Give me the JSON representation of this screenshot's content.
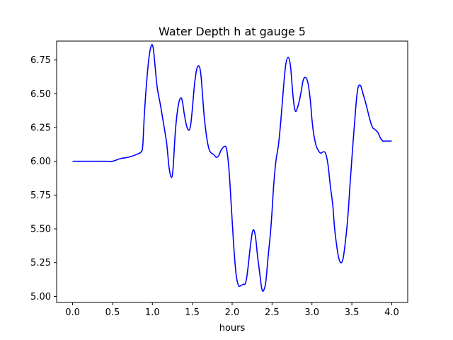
{
  "chart_data": {
    "type": "line",
    "title": "Water Depth h at gauge 5",
    "xlabel": "hours",
    "ylabel": "",
    "xlim": [
      -0.2,
      4.2
    ],
    "ylim": [
      4.955,
      6.89
    ],
    "xticks": [
      0.0,
      0.5,
      1.0,
      1.5,
      2.0,
      2.5,
      3.0,
      3.5,
      4.0
    ],
    "xtick_labels": [
      "0.0",
      "0.5",
      "1.0",
      "1.5",
      "2.0",
      "2.5",
      "3.0",
      "3.5",
      "4.0"
    ],
    "yticks": [
      5.0,
      5.25,
      5.5,
      5.75,
      6.0,
      6.25,
      6.5,
      6.75
    ],
    "ytick_labels": [
      "5.00",
      "5.25",
      "5.50",
      "5.75",
      "6.00",
      "6.25",
      "6.50",
      "6.75"
    ],
    "grid": false,
    "legend": "none",
    "series": [
      {
        "color": "#0000ff",
        "x": [
          0.0,
          0.2,
          0.42,
          0.5,
          0.6,
          0.7,
          0.8,
          0.86,
          0.88,
          0.9,
          0.93,
          0.96,
          0.99,
          1.01,
          1.03,
          1.06,
          1.1,
          1.14,
          1.18,
          1.21,
          1.24,
          1.26,
          1.28,
          1.3,
          1.33,
          1.36,
          1.38,
          1.4,
          1.43,
          1.46,
          1.48,
          1.5,
          1.53,
          1.56,
          1.59,
          1.61,
          1.63,
          1.65,
          1.68,
          1.71,
          1.74,
          1.77,
          1.8,
          1.83,
          1.86,
          1.9,
          1.93,
          1.96,
          1.99,
          2.02,
          2.05,
          2.08,
          2.11,
          2.14,
          2.16,
          2.18,
          2.2,
          2.23,
          2.26,
          2.29,
          2.32,
          2.35,
          2.37,
          2.39,
          2.42,
          2.45,
          2.48,
          2.5,
          2.52,
          2.55,
          2.58,
          2.61,
          2.64,
          2.67,
          2.7,
          2.73,
          2.76,
          2.78,
          2.8,
          2.83,
          2.86,
          2.89,
          2.92,
          2.95,
          2.98,
          3.0,
          3.02,
          3.05,
          3.08,
          3.11,
          3.14,
          3.17,
          3.2,
          3.23,
          3.26,
          3.28,
          3.3,
          3.33,
          3.36,
          3.39,
          3.42,
          3.45,
          3.48,
          3.51,
          3.54,
          3.56,
          3.58,
          3.61,
          3.64,
          3.67,
          3.7,
          3.73,
          3.76,
          3.78,
          3.8,
          3.83,
          3.86,
          3.89,
          3.92,
          3.95,
          3.98,
          4.0
        ],
        "y": [
          6.0,
          6.0,
          6.0,
          6.0,
          6.02,
          6.03,
          6.05,
          6.07,
          6.12,
          6.35,
          6.6,
          6.78,
          6.86,
          6.84,
          6.73,
          6.55,
          6.42,
          6.28,
          6.13,
          5.95,
          5.88,
          5.95,
          6.15,
          6.3,
          6.43,
          6.47,
          6.43,
          6.35,
          6.26,
          6.23,
          6.27,
          6.38,
          6.58,
          6.69,
          6.7,
          6.63,
          6.48,
          6.33,
          6.18,
          6.09,
          6.06,
          6.05,
          6.03,
          6.04,
          6.08,
          6.11,
          6.09,
          5.94,
          5.66,
          5.37,
          5.16,
          5.08,
          5.08,
          5.09,
          5.09,
          5.13,
          5.22,
          5.38,
          5.49,
          5.45,
          5.29,
          5.15,
          5.06,
          5.04,
          5.1,
          5.29,
          5.47,
          5.63,
          5.82,
          6.01,
          6.12,
          6.3,
          6.52,
          6.71,
          6.77,
          6.71,
          6.5,
          6.4,
          6.37,
          6.42,
          6.5,
          6.6,
          6.62,
          6.58,
          6.45,
          6.31,
          6.21,
          6.12,
          6.08,
          6.06,
          6.07,
          6.06,
          5.98,
          5.82,
          5.68,
          5.53,
          5.42,
          5.3,
          5.25,
          5.28,
          5.41,
          5.59,
          5.85,
          6.1,
          6.33,
          6.47,
          6.55,
          6.56,
          6.5,
          6.44,
          6.37,
          6.3,
          6.25,
          6.24,
          6.23,
          6.21,
          6.17,
          6.15,
          6.15,
          6.15,
          6.15,
          6.15
        ]
      }
    ]
  }
}
